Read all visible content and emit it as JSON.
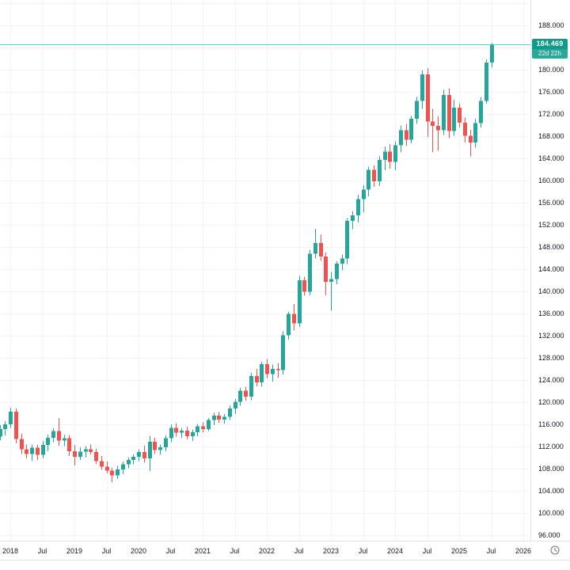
{
  "chart": {
    "current_price": {
      "label": "184.469",
      "countdown": "22d 22h"
    },
    "colors": {
      "up": "#26a69a",
      "down": "#ef5350",
      "price_line": "#26a69a",
      "price_label_bg": "#119a8b",
      "countdown_bg": "#2ba79a",
      "grid": "#f0f3fa",
      "axis_border": "#e0e3eb",
      "axis_text": "#131722",
      "background": "#ffffff",
      "icon_gray": "#787b86"
    },
    "y_axis_labels": [
      "188.000",
      "184.000",
      "180.000",
      "176.000",
      "172.000",
      "168.000",
      "164.000",
      "160.000",
      "156.000",
      "152.000",
      "148.000",
      "144.000",
      "140.000",
      "136.000",
      "132.000",
      "128.000",
      "124.000",
      "120.000",
      "116.000",
      "112.000",
      "108.000",
      "104.000",
      "100.000",
      "96.000"
    ],
    "x_axis_ticks": [
      {
        "m": 2,
        "label": "2018"
      },
      {
        "m": 8,
        "label": "Jul"
      },
      {
        "m": 14,
        "label": "2019"
      },
      {
        "m": 20,
        "label": "Jul"
      },
      {
        "m": 26,
        "label": "2020"
      },
      {
        "m": 32,
        "label": "Jul"
      },
      {
        "m": 38,
        "label": "2021"
      },
      {
        "m": 44,
        "label": "Jul"
      },
      {
        "m": 50,
        "label": "2022"
      },
      {
        "m": 56,
        "label": "Jul"
      },
      {
        "m": 62,
        "label": "2023"
      },
      {
        "m": 68,
        "label": "Jul"
      },
      {
        "m": 74,
        "label": "2024"
      },
      {
        "m": 80,
        "label": "Jul"
      },
      {
        "m": 86,
        "label": "2025"
      },
      {
        "m": 92,
        "label": "Jul"
      },
      {
        "m": 98,
        "label": "2026"
      }
    ],
    "icons": {
      "timezone_clock": "timezone-clock-icon"
    }
  },
  "chart_data": {
    "type": "candlestick",
    "interval_hint": "monthly candles",
    "current_price": 184.469,
    "countdown_to_bar_close": "22d 22h",
    "ylim": [
      95.05,
      192.5
    ],
    "y_tick_step": 4,
    "grid": true,
    "x_tick_labels": [
      "2018",
      "Jul",
      "2019",
      "Jul",
      "2020",
      "Jul",
      "2021",
      "Jul",
      "2022",
      "Jul",
      "2023",
      "Jul",
      "2024",
      "Jul",
      "2025",
      "Jul",
      "2026"
    ],
    "candles": [
      [
        "2017-11",
        113.8,
        115.9,
        113.2,
        115.2
      ],
      [
        "2017-12",
        115.2,
        116.6,
        114.0,
        116.0
      ],
      [
        "2018-01",
        116.0,
        119.0,
        115.4,
        118.3
      ],
      [
        "2018-02",
        118.3,
        118.9,
        112.6,
        113.4
      ],
      [
        "2018-03",
        113.4,
        114.4,
        110.7,
        111.5
      ],
      [
        "2018-04",
        111.5,
        112.4,
        109.9,
        110.7
      ],
      [
        "2018-05",
        110.7,
        112.4,
        109.4,
        111.8
      ],
      [
        "2018-06",
        111.8,
        112.3,
        109.6,
        110.5
      ],
      [
        "2018-07",
        110.5,
        113.0,
        109.9,
        112.3
      ],
      [
        "2018-08",
        112.3,
        114.2,
        111.2,
        113.6
      ],
      [
        "2018-09",
        113.6,
        115.3,
        112.8,
        114.8
      ],
      [
        "2018-10",
        114.8,
        117.1,
        112.2,
        113.1
      ],
      [
        "2018-11",
        113.1,
        114.2,
        112.1,
        113.5
      ],
      [
        "2018-12",
        113.5,
        114.1,
        110.3,
        111.2
      ],
      [
        "2019-01",
        111.2,
        112.3,
        108.6,
        110.2
      ],
      [
        "2019-02",
        110.2,
        111.9,
        109.6,
        111.1
      ],
      [
        "2019-03",
        111.1,
        112.1,
        110.0,
        111.5
      ],
      [
        "2019-04",
        111.5,
        112.4,
        110.6,
        111.0
      ],
      [
        "2019-05",
        111.0,
        111.6,
        108.9,
        109.4
      ],
      [
        "2019-06",
        109.4,
        110.3,
        107.8,
        108.4
      ],
      [
        "2019-07",
        108.4,
        109.3,
        107.2,
        107.7
      ],
      [
        "2019-08",
        107.7,
        108.2,
        105.6,
        106.8
      ],
      [
        "2019-09",
        106.8,
        108.5,
        106.2,
        107.9
      ],
      [
        "2019-10",
        107.9,
        109.3,
        107.0,
        108.8
      ],
      [
        "2019-11",
        108.8,
        110.0,
        108.1,
        109.6
      ],
      [
        "2019-12",
        109.6,
        110.6,
        108.8,
        110.2
      ],
      [
        "2020-01",
        110.2,
        111.5,
        109.4,
        111.0
      ],
      [
        "2020-02",
        111.0,
        112.2,
        109.1,
        109.9
      ],
      [
        "2020-03",
        109.9,
        113.9,
        107.6,
        112.9
      ],
      [
        "2020-04",
        112.9,
        113.6,
        110.7,
        111.4
      ],
      [
        "2020-05",
        111.4,
        112.4,
        110.5,
        111.9
      ],
      [
        "2020-06",
        111.9,
        114.0,
        111.2,
        113.5
      ],
      [
        "2020-07",
        113.5,
        116.0,
        112.8,
        115.4
      ],
      [
        "2020-08",
        115.4,
        116.2,
        113.8,
        114.5
      ],
      [
        "2020-09",
        114.5,
        115.4,
        113.6,
        114.9
      ],
      [
        "2020-10",
        114.9,
        115.6,
        113.3,
        113.9
      ],
      [
        "2020-11",
        113.9,
        115.0,
        113.0,
        114.6
      ],
      [
        "2020-12",
        114.6,
        116.1,
        113.9,
        115.7
      ],
      [
        "2021-01",
        115.7,
        116.4,
        114.6,
        115.2
      ],
      [
        "2021-02",
        115.2,
        117.2,
        114.8,
        116.8
      ],
      [
        "2021-03",
        116.8,
        118.1,
        115.9,
        117.6
      ],
      [
        "2021-04",
        117.6,
        118.2,
        116.3,
        116.9
      ],
      [
        "2021-05",
        116.9,
        117.9,
        116.2,
        117.4
      ],
      [
        "2021-06",
        117.4,
        119.4,
        116.8,
        118.9
      ],
      [
        "2021-07",
        118.9,
        120.6,
        117.9,
        120.1
      ],
      [
        "2021-08",
        120.1,
        122.6,
        119.4,
        122.1
      ],
      [
        "2021-09",
        122.1,
        122.8,
        120.3,
        121.0
      ],
      [
        "2021-10",
        121.0,
        125.3,
        120.4,
        124.7
      ],
      [
        "2021-11",
        124.7,
        126.0,
        122.9,
        123.6
      ],
      [
        "2021-12",
        123.6,
        127.3,
        122.8,
        126.9
      ],
      [
        "2022-01",
        126.9,
        127.8,
        124.3,
        125.1
      ],
      [
        "2022-02",
        125.1,
        126.8,
        123.7,
        126.0
      ],
      [
        "2022-03",
        126.0,
        127.1,
        124.4,
        125.8
      ],
      [
        "2022-04",
        125.8,
        132.8,
        125.0,
        132.1
      ],
      [
        "2022-05",
        132.1,
        136.3,
        131.3,
        135.9
      ],
      [
        "2022-06",
        135.9,
        137.7,
        132.9,
        134.2
      ],
      [
        "2022-07",
        134.2,
        142.8,
        133.6,
        142.0
      ],
      [
        "2022-08",
        142.0,
        142.6,
        139.2,
        139.9
      ],
      [
        "2022-09",
        139.9,
        147.5,
        139.3,
        146.8
      ],
      [
        "2022-10",
        146.8,
        151.3,
        145.9,
        148.7
      ],
      [
        "2022-11",
        148.7,
        150.2,
        145.5,
        146.3
      ],
      [
        "2022-12",
        146.3,
        147.0,
        139.3,
        141.7
      ],
      [
        "2023-01",
        141.7,
        143.5,
        136.5,
        142.2
      ],
      [
        "2023-02",
        142.2,
        145.4,
        141.3,
        145.0
      ],
      [
        "2023-03",
        145.0,
        146.6,
        143.8,
        145.9
      ],
      [
        "2023-04",
        145.9,
        153.2,
        144.9,
        152.7
      ],
      [
        "2023-05",
        152.7,
        154.4,
        151.2,
        153.7
      ],
      [
        "2023-06",
        153.7,
        157.4,
        152.4,
        156.6
      ],
      [
        "2023-07",
        156.6,
        159.1,
        154.2,
        158.3
      ],
      [
        "2023-08",
        158.3,
        162.5,
        157.1,
        161.9
      ],
      [
        "2023-09",
        161.9,
        162.7,
        158.8,
        159.8
      ],
      [
        "2023-10",
        159.8,
        164.4,
        159.0,
        163.7
      ],
      [
        "2023-11",
        163.7,
        166.1,
        161.8,
        165.2
      ],
      [
        "2023-12",
        165.2,
        166.5,
        162.1,
        163.3
      ],
      [
        "2024-01",
        163.3,
        167.0,
        161.8,
        166.3
      ],
      [
        "2024-02",
        166.3,
        169.9,
        165.0,
        169.0
      ],
      [
        "2024-03",
        169.0,
        170.2,
        166.2,
        167.3
      ],
      [
        "2024-04",
        167.3,
        171.6,
        166.7,
        171.1
      ],
      [
        "2024-05",
        171.1,
        175.0,
        170.2,
        174.3
      ],
      [
        "2024-06",
        174.3,
        179.8,
        172.9,
        179.1
      ],
      [
        "2024-07",
        179.1,
        180.2,
        167.8,
        170.6
      ],
      [
        "2024-08",
        170.6,
        172.9,
        165.0,
        169.8
      ],
      [
        "2024-09",
        169.8,
        171.5,
        165.3,
        169.0
      ],
      [
        "2024-10",
        169.0,
        176.3,
        168.2,
        175.4
      ],
      [
        "2024-11",
        175.4,
        176.6,
        167.6,
        168.9
      ],
      [
        "2024-12",
        168.9,
        174.6,
        168.0,
        173.1
      ],
      [
        "2025-01",
        173.1,
        173.9,
        169.5,
        170.4
      ],
      [
        "2025-02",
        170.4,
        171.3,
        166.8,
        168.0
      ],
      [
        "2025-03",
        168.0,
        169.1,
        164.3,
        166.8
      ],
      [
        "2025-04",
        166.8,
        171.1,
        165.9,
        170.3
      ],
      [
        "2025-05",
        170.3,
        175.0,
        169.5,
        174.3
      ],
      [
        "2025-06",
        174.3,
        181.8,
        173.8,
        181.2
      ],
      [
        "2025-07",
        181.2,
        184.8,
        180.4,
        184.469
      ]
    ]
  }
}
